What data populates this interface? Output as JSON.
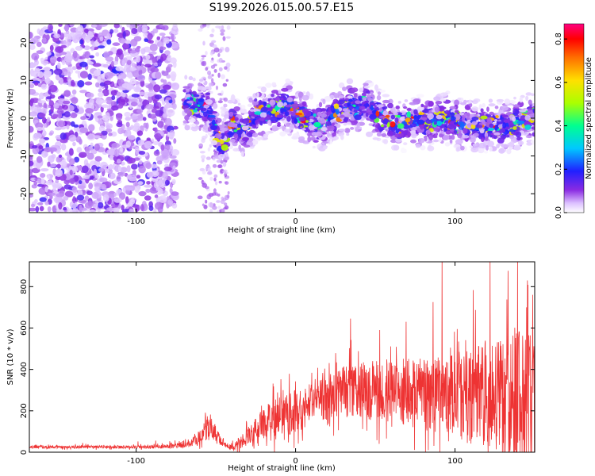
{
  "title": "S199.2026.015.00.57.E15",
  "chart_data": [
    {
      "type": "heatmap",
      "xlabel": "Height of straight line (km)",
      "ylabel": "Frequency (Hz)",
      "xlim": [
        -167,
        150
      ],
      "ylim": [
        -25,
        25
      ],
      "xticks": [
        -100,
        0,
        100
      ],
      "yticks": [
        -20,
        -10,
        0,
        10,
        20
      ],
      "colorbar": {
        "label": "Normalized spectral amplitude",
        "range": [
          0.0,
          0.87
        ],
        "ticks": [
          0.0,
          0.2,
          0.4,
          0.6,
          0.8
        ],
        "tick_labels": [
          "0.0",
          "0.2",
          "0.4",
          "0.6",
          "0.8"
        ]
      },
      "ridge_frequency_profile": [
        {
          "x": -65,
          "f": 4
        },
        {
          "x": -55,
          "f": 3
        },
        {
          "x": -47,
          "f": -8
        },
        {
          "x": -40,
          "f": -1
        },
        {
          "x": -32,
          "f": -4
        },
        {
          "x": -25,
          "f": 1
        },
        {
          "x": -15,
          "f": 2
        },
        {
          "x": -5,
          "f": 3
        },
        {
          "x": 5,
          "f": 0
        },
        {
          "x": 15,
          "f": -2
        },
        {
          "x": 25,
          "f": 1
        },
        {
          "x": 35,
          "f": 3
        },
        {
          "x": 45,
          "f": 3
        },
        {
          "x": 55,
          "f": 0
        },
        {
          "x": 65,
          "f": -2
        },
        {
          "x": 75,
          "f": -1
        },
        {
          "x": 85,
          "f": -1
        },
        {
          "x": 95,
          "f": 0
        },
        {
          "x": 105,
          "f": -2
        },
        {
          "x": 115,
          "f": -2
        },
        {
          "x": 125,
          "f": -2
        },
        {
          "x": 135,
          "f": -2
        },
        {
          "x": 148,
          "f": 0
        }
      ]
    },
    {
      "type": "line",
      "xlabel": "Height of straight line (km)",
      "ylabel": "SNR (10 * v/v)",
      "xlim": [
        -167,
        150
      ],
      "ylim": [
        0,
        920
      ],
      "xticks": [
        -100,
        0,
        100
      ],
      "yticks": [
        0,
        200,
        400,
        600,
        800
      ],
      "color": "#ee3333",
      "series": [
        {
          "name": "SNR",
          "x": [
            -165,
            -150,
            -130,
            -110,
            -90,
            -80,
            -70,
            -62,
            -55,
            -50,
            -45,
            -40,
            -35,
            -28,
            -20,
            -12,
            -5,
            0,
            10,
            20,
            30,
            40,
            50,
            60,
            70,
            80,
            90,
            100,
            110,
            120,
            130,
            140,
            150
          ],
          "y": [
            25,
            25,
            25,
            25,
            25,
            28,
            35,
            60,
            120,
            90,
            35,
            25,
            40,
            90,
            140,
            160,
            180,
            200,
            240,
            270,
            290,
            300,
            300,
            295,
            290,
            280,
            280,
            270,
            270,
            280,
            260,
            260,
            250
          ],
          "spread": [
            10,
            10,
            10,
            10,
            12,
            15,
            20,
            40,
            70,
            60,
            20,
            20,
            40,
            70,
            110,
            140,
            150,
            150,
            150,
            160,
            180,
            190,
            200,
            210,
            230,
            250,
            270,
            300,
            330,
            380,
            420,
            480,
            500
          ]
        }
      ]
    }
  ]
}
